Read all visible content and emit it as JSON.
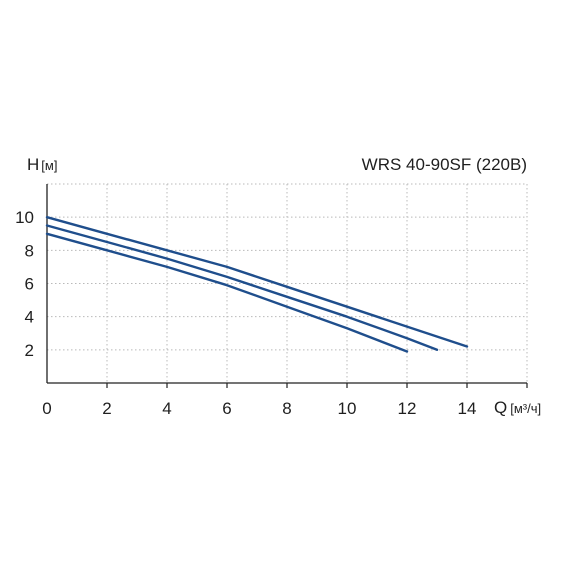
{
  "chart_data": {
    "type": "line",
    "title": "WRS 40-90SF (220В)",
    "ylabel_prefix": "H",
    "ylabel_unit": "[м]",
    "xlabel_prefix": "Q",
    "xlabel_unit": "[м³/ч]",
    "xlim": [
      0,
      16
    ],
    "ylim": [
      0,
      12
    ],
    "xticks": [
      "0",
      "2",
      "4",
      "6",
      "8",
      "10",
      "12",
      "14"
    ],
    "yticks": [
      "2",
      "4",
      "6",
      "8",
      "10"
    ],
    "grid": true,
    "line_color": "#1f4e8c",
    "series": [
      {
        "x": [
          0,
          2,
          4,
          6,
          8,
          10,
          12,
          14
        ],
        "y": [
          10,
          9.0,
          8.0,
          7.0,
          5.8,
          4.6,
          3.4,
          2.2
        ]
      },
      {
        "x": [
          0,
          2,
          4,
          6,
          8,
          10,
          12,
          13
        ],
        "y": [
          9.5,
          8.5,
          7.5,
          6.4,
          5.2,
          4.0,
          2.7,
          2.0
        ]
      },
      {
        "x": [
          0,
          2,
          4,
          6,
          8,
          10,
          12
        ],
        "y": [
          9.0,
          8.0,
          7.0,
          5.9,
          4.6,
          3.3,
          1.9
        ]
      }
    ]
  }
}
